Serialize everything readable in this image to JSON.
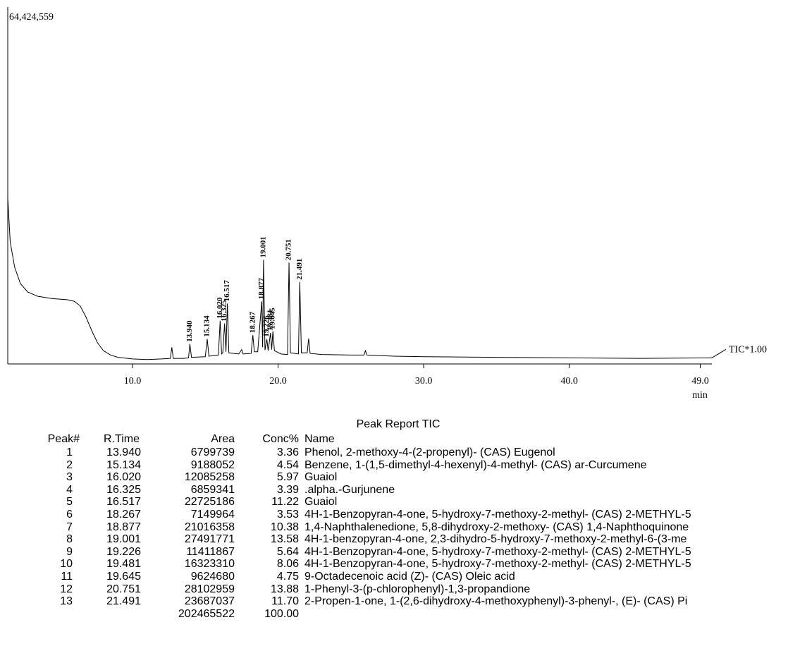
{
  "chart_data": {
    "type": "line",
    "xlim": [
      1.43,
      49.8
    ],
    "xticks": [
      {
        "value": 10,
        "label": "10.0"
      },
      {
        "value": 20,
        "label": "20.0"
      },
      {
        "value": 30,
        "label": "30.0"
      },
      {
        "value": 40,
        "label": "40.0"
      },
      {
        "value": 49,
        "label": "49.0"
      }
    ],
    "x_label": "min",
    "ylim": [
      0,
      64424559
    ],
    "yticks": [
      {
        "value": 64424559,
        "label": "64,424,559"
      }
    ],
    "x": [
      1.43,
      1.6,
      1.9,
      2.3,
      2.8,
      3.5,
      4.5,
      5.5,
      6.0,
      6.4,
      6.8,
      7.2,
      7.6,
      8.0,
      8.5,
      9.0,
      10.0,
      11.0,
      12.0,
      12.6,
      12.7,
      12.8,
      13.5,
      13.85,
      13.94,
      14.05,
      15.0,
      15.134,
      15.25,
      15.9,
      16.02,
      16.12,
      16.2,
      16.325,
      16.42,
      16.517,
      16.62,
      17.3,
      17.5,
      17.6,
      18.15,
      18.267,
      18.37,
      18.6,
      18.877,
      18.94,
      19.001,
      19.1,
      19.226,
      19.32,
      19.481,
      19.56,
      19.645,
      19.75,
      20.2,
      20.65,
      20.751,
      20.85,
      21.4,
      21.491,
      21.6,
      22.0,
      22.1,
      22.2,
      23.0,
      25.0,
      25.9,
      26.0,
      26.1,
      28.0,
      30.0,
      35.0,
      40.0,
      45.0,
      49.8
    ],
    "series": [
      {
        "name": "TIC*1.00",
        "color": "#000000",
        "values": [
          30000000,
          22000000,
          17500000,
          14500000,
          13000000,
          12200000,
          11800000,
          11600000,
          11300000,
          10500000,
          8500000,
          6000000,
          3800000,
          2400000,
          1600000,
          1200000,
          900000,
          800000,
          900000,
          1000000,
          3000000,
          1000000,
          1000000,
          1100000,
          3600000,
          1200000,
          1300000,
          4500000,
          1400000,
          1600000,
          7800000,
          1800000,
          2000000,
          7300000,
          2200000,
          10900000,
          2000000,
          1800000,
          2600000,
          1800000,
          1900000,
          5200000,
          2200000,
          2200000,
          11300000,
          3000000,
          18800000,
          2500000,
          4500000,
          2400000,
          5600000,
          2600000,
          5900000,
          2400000,
          1800000,
          1700000,
          18300000,
          2000000,
          1800000,
          14800000,
          2000000,
          2000000,
          4600000,
          1900000,
          1700000,
          1600000,
          1600000,
          2400000,
          1600000,
          1400000,
          1300000,
          1200000,
          1100000,
          1000000,
          1100000
        ]
      }
    ],
    "annotations": [
      {
        "value": 13.94,
        "label": "13.940"
      },
      {
        "value": 15.134,
        "label": "15.134"
      },
      {
        "value": 16.02,
        "label": "16.020"
      },
      {
        "value": 16.325,
        "label": "16.325"
      },
      {
        "value": 16.517,
        "label": "16.517"
      },
      {
        "value": 18.267,
        "label": "18.267"
      },
      {
        "value": 18.877,
        "label": "18.877"
      },
      {
        "value": 19.001,
        "label": "19.001"
      },
      {
        "value": 19.226,
        "label": "19.226"
      },
      {
        "value": 19.481,
        "label": "19.481"
      },
      {
        "value": 19.645,
        "label": "19.645"
      },
      {
        "value": 20.751,
        "label": "20.751"
      },
      {
        "value": 21.491,
        "label": "21.491"
      }
    ]
  },
  "table": {
    "title": "Peak Report TIC",
    "columns": [
      "Peak#",
      "R.Time",
      "Area",
      "Conc%",
      "Name"
    ],
    "rows": [
      [
        "1",
        "13.940",
        "6799739",
        "3.36",
        "Phenol, 2-methoxy-4-(2-propenyl)- (CAS) Eugenol"
      ],
      [
        "2",
        "15.134",
        "9188052",
        "4.54",
        "Benzene, 1-(1,5-dimethyl-4-hexenyl)-4-methyl- (CAS) ar-Curcumene"
      ],
      [
        "3",
        "16.020",
        "12085258",
        "5.97",
        "Guaiol"
      ],
      [
        "4",
        "16.325",
        "6859341",
        "3.39",
        ".alpha.-Gurjunene"
      ],
      [
        "5",
        "16.517",
        "22725186",
        "11.22",
        "Guaiol"
      ],
      [
        "6",
        "18.267",
        "7149964",
        "3.53",
        "4H-1-Benzopyran-4-one, 5-hydroxy-7-methoxy-2-methyl- (CAS) 2-METHYL-5"
      ],
      [
        "7",
        "18.877",
        "21016358",
        "10.38",
        "1,4-Naphthalenedione, 5,8-dihydroxy-2-methoxy- (CAS) 1,4-Naphthoquinone"
      ],
      [
        "8",
        "19.001",
        "27491771",
        "13.58",
        "4H-1-benzopyran-4-one, 2,3-dihydro-5-hydroxy-7-methoxy-2-methyl-6-(3-me"
      ],
      [
        "9",
        "19.226",
        "11411867",
        "5.64",
        "4H-1-Benzopyran-4-one, 5-hydroxy-7-methoxy-2-methyl- (CAS) 2-METHYL-5"
      ],
      [
        "10",
        "19.481",
        "16323310",
        "8.06",
        "4H-1-Benzopyran-4-one, 5-hydroxy-7-methoxy-2-methyl- (CAS) 2-METHYL-5"
      ],
      [
        "11",
        "19.645",
        "9624680",
        "4.75",
        "9-Octadecenoic acid (Z)- (CAS) Oleic acid"
      ],
      [
        "12",
        "20.751",
        "28102959",
        "13.88",
        "1-Phenyl-3-(p-chlorophenyl)-1,3-propandione"
      ],
      [
        "13",
        "21.491",
        "23687037",
        "11.70",
        "2-Propen-1-one, 1-(2,6-dihydroxy-4-methoxyphenyl)-3-phenyl-, (E)- (CAS) Pi"
      ]
    ],
    "total": {
      "area": "202465522",
      "conc": "100.00"
    }
  }
}
